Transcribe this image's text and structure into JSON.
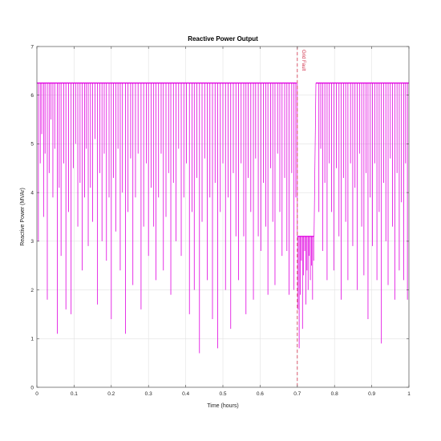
{
  "chart_data": {
    "type": "line",
    "title": "Reactive Power Output",
    "xlabel": "Time (hours)",
    "ylabel": "Reactive Power (MVAr)",
    "xlim": [
      0,
      1
    ],
    "ylim": [
      0,
      7
    ],
    "xticks": [
      "0",
      "0.1",
      "0.2",
      "0.3",
      "0.4",
      "0.5",
      "0.6",
      "0.7",
      "0.8",
      "0.9",
      "1"
    ],
    "yticks": [
      "0",
      "1",
      "2",
      "3",
      "4",
      "5",
      "6",
      "7"
    ],
    "grid": true,
    "series": [
      {
        "color": "#e000e0",
        "baseline": 6.25,
        "fault_level": 3.1,
        "dips": [
          [
            0.004,
            3.0
          ],
          [
            0.009,
            4.6
          ],
          [
            0.013,
            5.2
          ],
          [
            0.018,
            3.5
          ],
          [
            0.022,
            4.8
          ],
          [
            0.028,
            1.8
          ],
          [
            0.033,
            4.4
          ],
          [
            0.038,
            5.5
          ],
          [
            0.043,
            3.9
          ],
          [
            0.048,
            4.9
          ],
          [
            0.055,
            1.1
          ],
          [
            0.06,
            4.1
          ],
          [
            0.065,
            2.7
          ],
          [
            0.072,
            4.6
          ],
          [
            0.078,
            1.6
          ],
          [
            0.085,
            3.6
          ],
          [
            0.092,
            1.5
          ],
          [
            0.098,
            4.5
          ],
          [
            0.104,
            5.0
          ],
          [
            0.11,
            3.3
          ],
          [
            0.116,
            4.2
          ],
          [
            0.122,
            2.4
          ],
          [
            0.128,
            3.9
          ],
          [
            0.133,
            4.9
          ],
          [
            0.138,
            2.9
          ],
          [
            0.144,
            4.1
          ],
          [
            0.15,
            3.4
          ],
          [
            0.156,
            5.1
          ],
          [
            0.163,
            1.7
          ],
          [
            0.169,
            4.4
          ],
          [
            0.175,
            3.0
          ],
          [
            0.181,
            4.8
          ],
          [
            0.187,
            2.6
          ],
          [
            0.194,
            3.9
          ],
          [
            0.2,
            1.4
          ],
          [
            0.206,
            4.3
          ],
          [
            0.212,
            3.2
          ],
          [
            0.218,
            4.9
          ],
          [
            0.224,
            2.4
          ],
          [
            0.23,
            4.0
          ],
          [
            0.238,
            1.1
          ],
          [
            0.245,
            3.6
          ],
          [
            0.252,
            4.7
          ],
          [
            0.258,
            2.1
          ],
          [
            0.265,
            3.9
          ],
          [
            0.272,
            4.8
          ],
          [
            0.28,
            1.6
          ],
          [
            0.287,
            3.3
          ],
          [
            0.294,
            4.6
          ],
          [
            0.3,
            2.7
          ],
          [
            0.307,
            4.1
          ],
          [
            0.314,
            3.3
          ],
          [
            0.32,
            2.2
          ],
          [
            0.327,
            3.9
          ],
          [
            0.334,
            4.8
          ],
          [
            0.34,
            2.4
          ],
          [
            0.347,
            3.5
          ],
          [
            0.354,
            4.4
          ],
          [
            0.36,
            1.9
          ],
          [
            0.367,
            4.2
          ],
          [
            0.374,
            3.0
          ],
          [
            0.381,
            4.9
          ],
          [
            0.388,
            2.7
          ],
          [
            0.395,
            3.9
          ],
          [
            0.402,
            4.6
          ],
          [
            0.41,
            1.5
          ],
          [
            0.417,
            3.6
          ],
          [
            0.423,
            2.0
          ],
          [
            0.43,
            4.3
          ],
          [
            0.437,
            0.7
          ],
          [
            0.444,
            3.4
          ],
          [
            0.451,
            4.7
          ],
          [
            0.458,
            2.2
          ],
          [
            0.465,
            3.9
          ],
          [
            0.472,
            1.4
          ],
          [
            0.479,
            4.2
          ],
          [
            0.486,
            0.8
          ],
          [
            0.493,
            3.6
          ],
          [
            0.5,
            4.6
          ],
          [
            0.507,
            2.0
          ],
          [
            0.514,
            3.9
          ],
          [
            0.521,
            1.2
          ],
          [
            0.528,
            4.4
          ],
          [
            0.535,
            3.1
          ],
          [
            0.542,
            2.2
          ],
          [
            0.549,
            4.6
          ],
          [
            0.556,
            3.1
          ],
          [
            0.562,
            1.5
          ],
          [
            0.568,
            4.3
          ],
          [
            0.575,
            3.6
          ],
          [
            0.582,
            1.8
          ],
          [
            0.588,
            4.7
          ],
          [
            0.595,
            3.1
          ],
          [
            0.602,
            2.8
          ],
          [
            0.609,
            4.2
          ],
          [
            0.615,
            3.3
          ],
          [
            0.621,
            1.9
          ],
          [
            0.628,
            4.5
          ],
          [
            0.634,
            3.4
          ],
          [
            0.64,
            2.1
          ],
          [
            0.647,
            4.8
          ],
          [
            0.653,
            3.6
          ],
          [
            0.659,
            2.7
          ],
          [
            0.666,
            4.3
          ],
          [
            0.672,
            2.8
          ],
          [
            0.678,
            1.9
          ],
          [
            0.685,
            4.4
          ],
          [
            0.691,
            2.0
          ],
          [
            0.696,
            3.9
          ],
          [
            0.758,
            3.6
          ],
          [
            0.763,
            4.9
          ],
          [
            0.768,
            2.8
          ],
          [
            0.774,
            4.2
          ],
          [
            0.78,
            2.2
          ],
          [
            0.786,
            4.6
          ],
          [
            0.792,
            3.6
          ],
          [
            0.798,
            2.4
          ],
          [
            0.805,
            4.5
          ],
          [
            0.812,
            3.1
          ],
          [
            0.818,
            1.8
          ],
          [
            0.824,
            4.3
          ],
          [
            0.83,
            3.4
          ],
          [
            0.836,
            2.2
          ],
          [
            0.843,
            4.6
          ],
          [
            0.849,
            2.9
          ],
          [
            0.855,
            4.1
          ],
          [
            0.861,
            2.0
          ],
          [
            0.867,
            4.8
          ],
          [
            0.873,
            3.3
          ],
          [
            0.879,
            2.3
          ],
          [
            0.885,
            4.4
          ],
          [
            0.89,
            1.4
          ],
          [
            0.896,
            3.9
          ],
          [
            0.902,
            2.9
          ],
          [
            0.908,
            4.6
          ],
          [
            0.914,
            2.2
          ],
          [
            0.92,
            3.6
          ],
          [
            0.926,
            0.9
          ],
          [
            0.932,
            4.2
          ],
          [
            0.938,
            3.0
          ],
          [
            0.944,
            2.1
          ],
          [
            0.95,
            4.7
          ],
          [
            0.956,
            3.3
          ],
          [
            0.962,
            1.8
          ],
          [
            0.968,
            4.4
          ],
          [
            0.974,
            2.4
          ],
          [
            0.98,
            3.8
          ],
          [
            0.986,
            2.2
          ],
          [
            0.991,
            4.6
          ],
          [
            0.996,
            1.8
          ]
        ],
        "fault_dips": [
          [
            0.702,
            1.6
          ],
          [
            0.705,
            0.8
          ],
          [
            0.708,
            1.9
          ],
          [
            0.711,
            2.6
          ],
          [
            0.714,
            1.2
          ],
          [
            0.717,
            2.3
          ],
          [
            0.72,
            2.8
          ],
          [
            0.723,
            1.7
          ],
          [
            0.726,
            2.4
          ],
          [
            0.729,
            2.0
          ],
          [
            0.732,
            2.7
          ],
          [
            0.735,
            2.2
          ],
          [
            0.738,
            2.5
          ],
          [
            0.741,
            1.8
          ],
          [
            0.744,
            2.6
          ]
        ]
      }
    ],
    "annotations": [
      {
        "type": "vline",
        "x": 0.7,
        "label": "Grid Fault",
        "color": "#d0304a"
      }
    ]
  }
}
